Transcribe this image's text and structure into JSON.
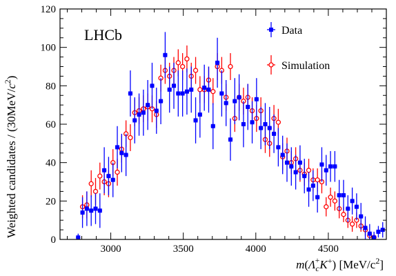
{
  "chart_data": {
    "type": "scatter",
    "experiment_label": "LHCb",
    "xlabel_parts": [
      "m",
      "(",
      "Λ",
      "c",
      "+",
      "K",
      "+",
      ") [MeV/c",
      "2",
      "]"
    ],
    "ylabel_parts": [
      "Weighted candidates / (30MeV/",
      "c",
      "2",
      ")"
    ],
    "xlim": [
      2650,
      4900
    ],
    "ylim": [
      0,
      120
    ],
    "x_ticks": [
      3000,
      3500,
      4000,
      4500
    ],
    "y_ticks": [
      0,
      20,
      40,
      60,
      80,
      100,
      120
    ],
    "x_minor_step": 100,
    "y_minor_step": 5,
    "grid": false,
    "legend_position": "top-right",
    "colors": {
      "data": "#0000ff",
      "simulation": "#ff0000",
      "axis": "#000000"
    },
    "series": [
      {
        "name": "Data",
        "marker": "filled-square",
        "x": [
          2775,
          2805,
          2835,
          2865,
          2895,
          2925,
          2955,
          2985,
          3015,
          3045,
          3075,
          3105,
          3135,
          3165,
          3195,
          3225,
          3255,
          3285,
          3315,
          3345,
          3375,
          3405,
          3435,
          3465,
          3495,
          3525,
          3555,
          3585,
          3615,
          3645,
          3675,
          3705,
          3735,
          3765,
          3795,
          3825,
          3855,
          3885,
          3915,
          3945,
          3975,
          4005,
          4035,
          4065,
          4095,
          4125,
          4155,
          4185,
          4215,
          4245,
          4275,
          4305,
          4335,
          4365,
          4395,
          4425,
          4455,
          4485,
          4515,
          4545,
          4575,
          4605,
          4635,
          4665,
          4695,
          4725,
          4755,
          4785,
          4815,
          4845,
          4875
        ],
        "y": [
          1,
          14,
          16,
          15,
          16,
          15,
          36,
          33,
          31,
          48,
          45,
          44,
          76,
          62,
          65,
          66,
          70,
          80,
          67,
          72,
          96,
          78,
          80,
          76,
          76,
          77,
          78,
          62,
          65,
          79,
          78,
          59,
          92,
          76,
          71,
          52,
          72,
          74,
          60,
          69,
          61,
          73,
          58,
          60,
          58,
          55,
          48,
          44,
          40,
          38,
          35,
          40,
          33,
          26,
          28,
          22,
          39,
          36,
          38,
          38,
          23,
          23,
          16,
          20,
          17,
          12,
          6,
          3,
          1,
          4,
          5
        ],
        "err": [
          2,
          8,
          9,
          8,
          8,
          9,
          12,
          10,
          9,
          11,
          10,
          11,
          12,
          12,
          11,
          12,
          13,
          12,
          12,
          12,
          12,
          12,
          12,
          12,
          12,
          12,
          12,
          12,
          12,
          12,
          12,
          12,
          13,
          12,
          12,
          11,
          12,
          12,
          12,
          12,
          11,
          11,
          11,
          11,
          11,
          10,
          10,
          10,
          10,
          10,
          9,
          9,
          9,
          9,
          8,
          8,
          9,
          8,
          8,
          8,
          8,
          8,
          7,
          7,
          7,
          7,
          6,
          5,
          3,
          3,
          4
        ]
      },
      {
        "name": "Simulation",
        "marker": "open-circle",
        "x": [
          2805,
          2835,
          2865,
          2895,
          2925,
          2955,
          2985,
          3015,
          3045,
          3075,
          3105,
          3135,
          3165,
          3195,
          3225,
          3255,
          3285,
          3315,
          3345,
          3375,
          3405,
          3435,
          3465,
          3495,
          3525,
          3555,
          3585,
          3615,
          3645,
          3675,
          3705,
          3735,
          3765,
          3795,
          3825,
          3855,
          3885,
          3915,
          3945,
          3975,
          4005,
          4035,
          4065,
          4095,
          4125,
          4155,
          4185,
          4215,
          4245,
          4275,
          4305,
          4335,
          4365,
          4395,
          4425,
          4455,
          4485,
          4515,
          4545,
          4575,
          4605,
          4635,
          4665,
          4695,
          4725,
          4755,
          4785,
          4815
        ],
        "y": [
          17,
          18,
          29,
          25,
          33,
          30,
          29,
          40,
          35,
          47,
          55,
          53,
          66,
          67,
          68,
          69,
          68,
          65,
          84,
          88,
          85,
          88,
          92,
          90,
          94,
          85,
          88,
          78,
          78,
          83,
          77,
          90,
          88,
          74,
          90,
          63,
          74,
          72,
          74,
          67,
          63,
          67,
          52,
          50,
          63,
          61,
          43,
          46,
          40,
          42,
          36,
          34,
          36,
          31,
          31,
          30,
          17,
          22,
          20,
          16,
          13,
          10,
          8,
          10,
          7,
          5,
          2,
          1
        ],
        "err": [
          6,
          7,
          7,
          7,
          7,
          7,
          7,
          7,
          7,
          7,
          7,
          7,
          7,
          7,
          7,
          7,
          7,
          7,
          7,
          7,
          7,
          7,
          7,
          7,
          7,
          7,
          7,
          7,
          7,
          7,
          7,
          7,
          7,
          7,
          7,
          7,
          7,
          7,
          7,
          7,
          7,
          7,
          7,
          7,
          7,
          7,
          7,
          7,
          6,
          6,
          6,
          6,
          6,
          6,
          6,
          6,
          5,
          5,
          5,
          5,
          4,
          4,
          4,
          4,
          3,
          3,
          2,
          2
        ]
      }
    ]
  }
}
